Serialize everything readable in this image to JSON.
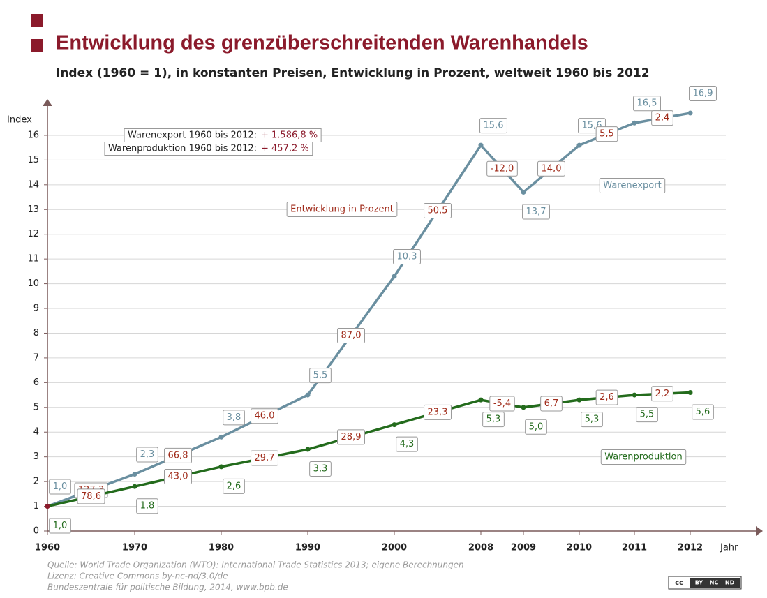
{
  "chart_data": {
    "type": "line",
    "title": "Entwicklung des grenzüberschreitenden Warenhandels",
    "subtitle": "Index (1960 = 1), in konstanten Preisen, Entwicklung in Prozent, weltweit 1960 bis 2012",
    "y_label": "Index",
    "x_label": "Jahr",
    "categories": [
      "1960",
      "1970",
      "1980",
      "1990",
      "2000",
      "2008",
      "2009",
      "2010",
      "2011",
      "2012"
    ],
    "ylim": [
      0,
      17
    ],
    "yticks": [
      0,
      1,
      2,
      3,
      4,
      5,
      6,
      7,
      8,
      9,
      10,
      11,
      12,
      13,
      14,
      15,
      16
    ],
    "grid": true,
    "series": [
      {
        "name": "Warenexport",
        "color": "#6a8fa0",
        "values": [
          1.0,
          2.3,
          3.8,
          5.5,
          10.3,
          15.6,
          13.7,
          15.6,
          16.5,
          16.9
        ],
        "value_labels": [
          "1,0",
          "2,3",
          "3,8",
          "5,5",
          "10,3",
          "15,6",
          "13,7",
          "15,6",
          "16,5",
          "16,9"
        ],
        "changes": [
          127.3,
          66.8,
          46.0,
          87.0,
          50.5,
          -12.0,
          14.0,
          5.5,
          2.4
        ],
        "change_labels": [
          "127,3",
          "66,8",
          "46,0",
          "87,0",
          "50,5",
          "-12,0",
          "14,0",
          "5,5",
          "2,4"
        ]
      },
      {
        "name": "Warenproduktion",
        "color": "#236b1c",
        "values": [
          1.0,
          1.8,
          2.6,
          3.3,
          4.3,
          5.3,
          5.0,
          5.3,
          5.5,
          5.6
        ],
        "value_labels": [
          "1,0",
          "1,8",
          "2,6",
          "3,3",
          "4,3",
          "5,3",
          "5,0",
          "5,3",
          "5,5",
          "5,6"
        ],
        "changes": [
          78.6,
          43.0,
          29.7,
          28.9,
          23.3,
          -5.4,
          6.7,
          2.6,
          2.2
        ],
        "change_labels": [
          "78,6",
          "43,0",
          "29,7",
          "28,9",
          "23,3",
          "-5,4",
          "6,7",
          "2,6",
          "2,2"
        ]
      }
    ],
    "annotations": [
      {
        "text": "Warenexport 1960 bis 2012:",
        "value": "+ 1.586,8 %"
      },
      {
        "text": "Warenproduktion 1960 bis 2012:",
        "value": "+ 457,2 %"
      }
    ],
    "change_caption": "Entwicklung in Prozent",
    "source": [
      "Quelle: World Trade Organization (WTO): International Trade Statistics 2013; eigene Berechnungen",
      "Lizenz: Creative Commons by-nc-nd/3.0/de",
      "Bundeszentrale für politische Bildung, 2014, www.bpb.de"
    ],
    "license_badge": [
      "cc",
      "BY – NC – ND"
    ]
  }
}
